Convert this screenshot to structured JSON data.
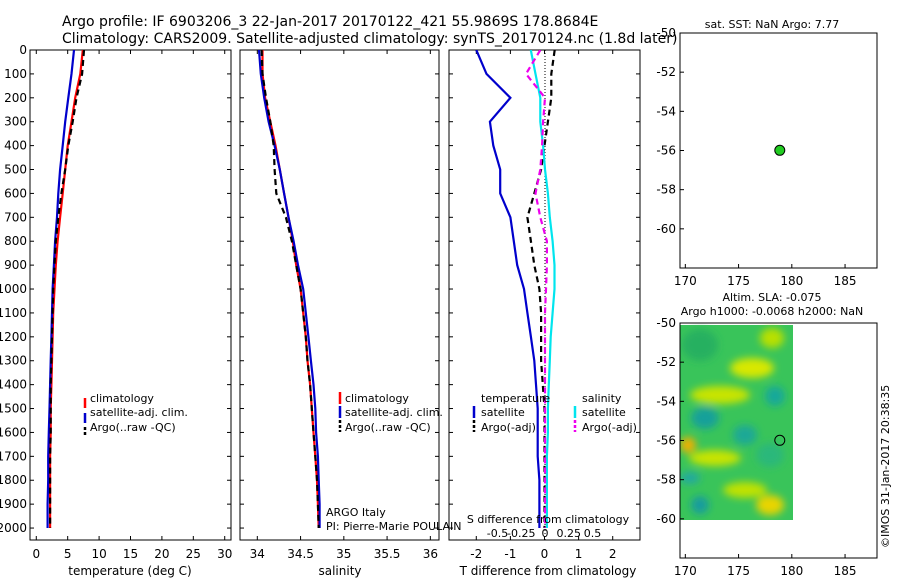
{
  "title_line1": "Argo profile: IF 6903206_3 22-Jan-2017 20170122_421 55.9869S 178.8684E",
  "title_line2": "Climatology: CARS2009. Satellite-adjusted climatology: synTS_20170124.nc (1.8d later)",
  "footer": "©IMOS 31-Jan-2017 20:38:35",
  "depth_ticks": [
    "0",
    "100",
    "200",
    "300",
    "400",
    "500",
    "600",
    "700",
    "800",
    "900",
    "1000",
    "1100",
    "1200",
    "1300",
    "1400",
    "1500",
    "1600",
    "1700",
    "1800",
    "1900",
    "2000"
  ],
  "colors": {
    "climatology": "#ff0000",
    "satellite": "#0000cc",
    "argo": "#000000",
    "sat_salinity": "#00e5ee",
    "argo_salinity": "#ee00ee",
    "marker": "#22cc22"
  },
  "chart_data": [
    {
      "type": "line",
      "xlabel": "temperature (deg C)",
      "ylim": [
        2050,
        0
      ],
      "xlim": [
        -1,
        31
      ],
      "xticks": [
        "0",
        "5",
        "10",
        "15",
        "20",
        "25",
        "30"
      ],
      "xtick_values": [
        0,
        5,
        10,
        15,
        20,
        25,
        30
      ],
      "legend": [
        "climatology",
        "satellite-adj. clim.",
        "Argo(..raw -QC)"
      ],
      "series": [
        {
          "name": "climatology",
          "color": "#ff0000",
          "x": [
            7.4,
            7.0,
            6.2,
            5.6,
            5.0,
            4.6,
            4.2,
            3.8,
            3.4,
            3.1,
            2.9,
            2.7,
            2.6,
            2.5,
            2.4,
            2.3,
            2.3,
            2.2,
            2.2,
            2.2,
            2.2
          ],
          "y": [
            0,
            100,
            200,
            300,
            400,
            500,
            600,
            700,
            800,
            900,
            1000,
            1100,
            1200,
            1300,
            1400,
            1500,
            1600,
            1700,
            1800,
            1900,
            2000
          ]
        },
        {
          "name": "satellite-adj. clim.",
          "color": "#0000cc",
          "x": [
            6.0,
            5.6,
            5.1,
            4.6,
            4.2,
            3.8,
            3.5,
            3.3,
            3.0,
            2.8,
            2.6,
            2.5,
            2.4,
            2.3,
            2.2,
            2.1,
            2.0,
            1.9,
            1.9,
            1.8,
            1.8
          ],
          "y": [
            0,
            100,
            200,
            300,
            400,
            500,
            600,
            700,
            800,
            900,
            1000,
            1100,
            1200,
            1300,
            1400,
            1500,
            1600,
            1700,
            1800,
            1900,
            2000
          ]
        },
        {
          "name": "Argo(..raw -QC)",
          "color": "#000000",
          "x": [
            7.6,
            7.3,
            6.4,
            5.8,
            5.1,
            4.6,
            4.0,
            3.5,
            3.1,
            2.9,
            2.7,
            2.6,
            2.5,
            2.4,
            2.3,
            2.3,
            2.3,
            2.2,
            2.2,
            2.2,
            2.2
          ],
          "y": [
            0,
            100,
            200,
            300,
            400,
            500,
            600,
            700,
            800,
            900,
            1000,
            1100,
            1200,
            1300,
            1400,
            1500,
            1600,
            1700,
            1800,
            1900,
            2000
          ]
        }
      ]
    },
    {
      "type": "line",
      "xlabel": "salinity",
      "ylim": [
        2050,
        0
      ],
      "xlim": [
        33.8,
        36.1
      ],
      "xticks": [
        "34",
        "34.5",
        "35",
        "35.5",
        "36"
      ],
      "xtick_values": [
        34,
        34.5,
        35,
        35.5,
        36
      ],
      "legend": [
        "climatology",
        "satellite-adj. clim.",
        "Argo(..raw -QC)"
      ],
      "annotation_line1": "ARGO Italy",
      "annotation_line2": "PI: Pierre-Marie POULAIN",
      "series": [
        {
          "name": "climatology",
          "color": "#ff0000",
          "x": [
            34.06,
            34.06,
            34.09,
            34.15,
            34.21,
            34.26,
            34.31,
            34.36,
            34.41,
            34.45,
            34.5,
            34.53,
            34.56,
            34.58,
            34.61,
            34.63,
            34.65,
            34.67,
            34.69,
            34.7,
            34.71
          ],
          "y": [
            0,
            100,
            200,
            300,
            400,
            500,
            600,
            700,
            800,
            900,
            1000,
            1100,
            1200,
            1300,
            1400,
            1500,
            1600,
            1700,
            1800,
            1900,
            2000
          ]
        },
        {
          "name": "satellite-adj. clim.",
          "color": "#0000cc",
          "x": [
            34.02,
            34.04,
            34.08,
            34.13,
            34.2,
            34.26,
            34.31,
            34.36,
            34.42,
            34.47,
            34.53,
            34.56,
            34.59,
            34.62,
            34.65,
            34.67,
            34.68,
            34.7,
            34.71,
            34.72,
            34.72
          ],
          "y": [
            0,
            100,
            200,
            300,
            400,
            500,
            600,
            700,
            800,
            900,
            1000,
            1100,
            1200,
            1300,
            1400,
            1500,
            1600,
            1700,
            1800,
            1900,
            2000
          ]
        },
        {
          "name": "Argo(..raw -QC)",
          "color": "#000000",
          "x": [
            34.05,
            34.06,
            34.1,
            34.15,
            34.19,
            34.2,
            34.22,
            34.33,
            34.4,
            34.45,
            34.5,
            34.53,
            34.56,
            34.58,
            34.61,
            34.63,
            34.65,
            34.67,
            34.69,
            34.7,
            34.71
          ],
          "y": [
            0,
            100,
            200,
            300,
            400,
            500,
            600,
            700,
            800,
            900,
            1000,
            1100,
            1200,
            1300,
            1400,
            1500,
            1600,
            1700,
            1800,
            1900,
            2000
          ]
        }
      ]
    },
    {
      "type": "line",
      "xlabel": "T difference from climatology",
      "toplabel": "S difference from climatology",
      "ylim": [
        2050,
        0
      ],
      "xlim": [
        -2.8,
        2.8
      ],
      "xticks": [
        "-2",
        "-1",
        "0",
        "1",
        "2"
      ],
      "xtick_values": [
        -2,
        -1,
        0,
        1,
        2
      ],
      "sticks": [
        "-0.5",
        "-0.25",
        "0",
        "0.25",
        "0.5"
      ],
      "legend_temperature_title": "temperature",
      "legend_salinity_title": "salinity",
      "legend_temperature": [
        "satellite",
        "Argo(-adj)"
      ],
      "legend_salinity": [
        "satellite",
        "Argo(-adj)"
      ],
      "series": [
        {
          "name": "temperature satellite",
          "color": "#0000cc",
          "x": [
            -2.0,
            -1.7,
            -1.0,
            -1.6,
            -1.5,
            -1.3,
            -1.3,
            -1.0,
            -0.9,
            -0.8,
            -0.6,
            -0.5,
            -0.4,
            -0.3,
            -0.25,
            -0.2,
            -0.2,
            -0.2,
            -0.15,
            -0.15,
            -0.15
          ],
          "y": [
            0,
            100,
            200,
            300,
            400,
            500,
            600,
            700,
            800,
            900,
            1000,
            1100,
            1200,
            1300,
            1400,
            1500,
            1600,
            1700,
            1800,
            1900,
            2000
          ]
        },
        {
          "name": "temperature Argo(-adj)",
          "color": "#000000",
          "x": [
            0.3,
            0.2,
            0.2,
            0.1,
            0.0,
            -0.1,
            -0.3,
            -0.5,
            -0.4,
            -0.3,
            -0.15,
            -0.1,
            -0.1,
            -0.1,
            -0.05,
            0.0,
            0.0,
            0.0,
            0.0,
            0.0,
            0.0
          ],
          "y": [
            0,
            100,
            200,
            300,
            400,
            500,
            600,
            700,
            800,
            900,
            1000,
            1100,
            1200,
            1300,
            1400,
            1500,
            1600,
            1700,
            1800,
            1900,
            2000
          ]
        },
        {
          "name": "salinity satellite",
          "color": "#00e5ee",
          "x": [
            -0.15,
            -0.1,
            -0.05,
            -0.05,
            -0.02,
            0.0,
            0.03,
            0.05,
            0.08,
            0.1,
            0.1,
            0.08,
            0.06,
            0.05,
            0.04,
            0.03,
            0.03,
            0.02,
            0.02,
            0.02,
            0.02
          ],
          "y": [
            0,
            100,
            200,
            300,
            400,
            500,
            600,
            700,
            800,
            900,
            1000,
            1100,
            1200,
            1300,
            1400,
            1500,
            1600,
            1700,
            1800,
            1900,
            2000
          ]
        },
        {
          "name": "salinity Argo(-adj)",
          "color": "#ee00ee",
          "x": [
            -0.05,
            -0.2,
            0.0,
            -0.02,
            -0.03,
            -0.05,
            -0.1,
            -0.05,
            0.02,
            0.02,
            0.01,
            0.0,
            0.0,
            0.0,
            0.0,
            0.0,
            0.0,
            0.0,
            0.0,
            0.0,
            0.0
          ],
          "y": [
            0,
            100,
            200,
            300,
            400,
            500,
            600,
            700,
            800,
            900,
            1000,
            1100,
            1200,
            1300,
            1400,
            1500,
            1600,
            1700,
            1800,
            1900,
            2000
          ]
        }
      ]
    },
    {
      "type": "scatter",
      "title": "sat. SST: NaN Argo: 7.77",
      "xlim": [
        169.5,
        188
      ],
      "ylim": [
        -62,
        -50
      ],
      "xticks": [
        "170",
        "175",
        "180",
        "185"
      ],
      "xtick_values": [
        170,
        175,
        180,
        185
      ],
      "yticks": [
        "-50",
        "-52",
        "-54",
        "-56",
        "-58",
        "-60"
      ],
      "ytick_values": [
        -50,
        -52,
        -54,
        -56,
        -58,
        -60
      ],
      "points": [
        {
          "x": 178.87,
          "y": -55.99
        }
      ]
    },
    {
      "type": "heatmap",
      "title_line1": "Altim. SLA: -0.075",
      "title_line2": "Argo h1000: -0.0068 h2000: NaN",
      "xlim": [
        169.5,
        188
      ],
      "ylim": [
        -62,
        -50
      ],
      "xticks": [
        "170",
        "175",
        "180",
        "185"
      ],
      "xtick_values": [
        170,
        175,
        180,
        185
      ],
      "yticks": [
        "-50",
        "-52",
        "-54",
        "-56",
        "-58",
        "-60"
      ],
      "ytick_values": [
        -50,
        -52,
        -54,
        -56,
        -58,
        -60
      ],
      "field_extent": {
        "lon": [
          170,
          180
        ],
        "lat": [
          -60,
          -50
        ]
      },
      "points": [
        {
          "x": 178.87,
          "y": -55.99
        }
      ]
    }
  ]
}
